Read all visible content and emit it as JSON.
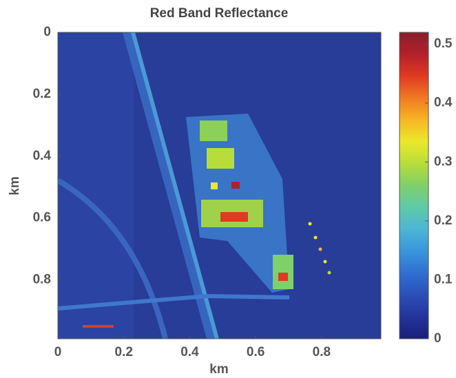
{
  "chart_data": {
    "type": "image",
    "title": "Red Band Reflectance",
    "x_label": "km",
    "y_label": "km",
    "xlim": [
      0,
      0.98
    ],
    "ylim": [
      0,
      0.99
    ],
    "y_inverted": true,
    "xticks": [
      0,
      0.2,
      0.4,
      0.6,
      0.8
    ],
    "yticks": [
      0,
      0.2,
      0.4,
      0.6,
      0.8
    ],
    "colorbar": {
      "lim": [
        0,
        0.52
      ],
      "ticks": [
        0,
        0.1,
        0.2,
        0.3,
        0.4,
        0.5
      ],
      "colormap": [
        "#1a1f7a",
        "#23349a",
        "#2b4fb8",
        "#2f6fd0",
        "#3a95dc",
        "#4cb6d6",
        "#5fc9a8",
        "#7fd06a",
        "#b6dd3a",
        "#ece82c",
        "#f6b624",
        "#f07a22",
        "#e03a22",
        "#b3202a",
        "#8a1f2a"
      ]
    }
  }
}
